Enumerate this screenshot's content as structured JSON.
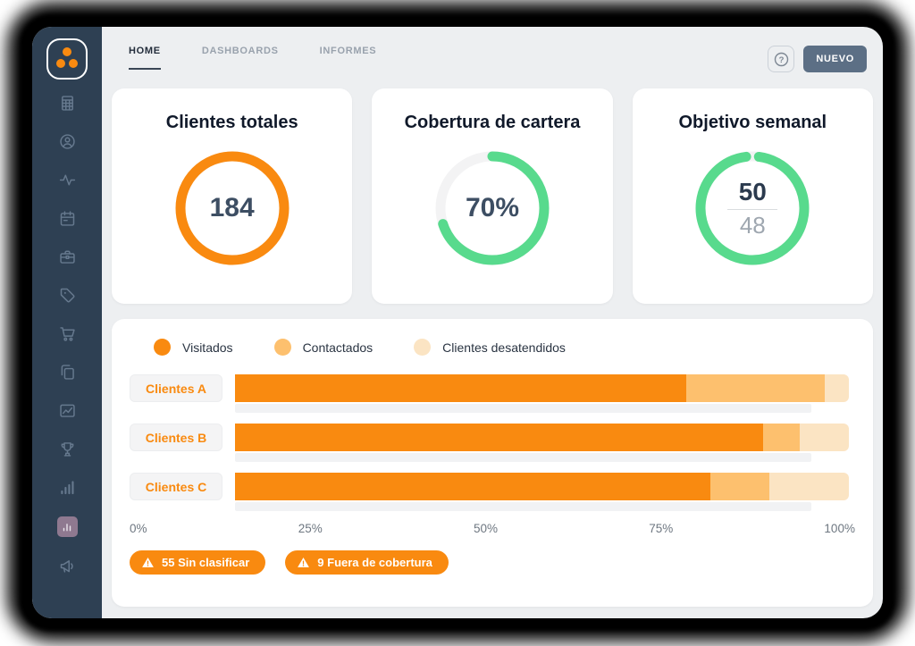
{
  "header": {
    "tabs": [
      {
        "label": "HOME",
        "active": true
      },
      {
        "label": "DASHBOARDS",
        "active": false
      },
      {
        "label": "INFORMES",
        "active": false
      }
    ],
    "help_label": "?",
    "new_button_label": "NUEVO"
  },
  "sidebar": {
    "items": [
      {
        "icon": "spreadsheet"
      },
      {
        "icon": "user"
      },
      {
        "icon": "activity"
      },
      {
        "icon": "calendar"
      },
      {
        "icon": "briefcase"
      },
      {
        "icon": "tag"
      },
      {
        "icon": "cart"
      },
      {
        "icon": "copy"
      },
      {
        "icon": "chart-frame"
      },
      {
        "icon": "trophy"
      },
      {
        "icon": "bar-chart"
      },
      {
        "icon": "bar-chart-badge",
        "highlight": true
      },
      {
        "icon": "megaphone"
      }
    ]
  },
  "kpis": [
    {
      "title": "Clientes totales",
      "value": "184",
      "percent": 100,
      "color": "#F98A10",
      "track": "#F3F3F4"
    },
    {
      "title": "Cobertura de cartera",
      "value": "70%",
      "percent": 70,
      "color": "#58DA8D",
      "track": "#F3F3F4"
    },
    {
      "title": "Objetivo semanal",
      "value_top": "50",
      "value_bottom": "48",
      "percent": 96,
      "color": "#58DA8D",
      "track": "#F3F3F4",
      "gap_centered": true
    }
  ],
  "chart_data": {
    "type": "bar",
    "orientation": "horizontal",
    "stacked": true,
    "categories": [
      "Clientes A",
      "Clientes B",
      "Clientes C"
    ],
    "series": [
      {
        "name": "Visitados",
        "color": "#F98A10",
        "values": [
          73.5,
          86,
          77.5
        ]
      },
      {
        "name": "Contactados",
        "color": "#FDC06E",
        "values": [
          22.5,
          6,
          9.5
        ]
      },
      {
        "name": "Clientes desatendidos",
        "color": "#FBE4C3",
        "values": [
          4,
          8,
          13
        ]
      }
    ],
    "x_ticks": [
      "0%",
      "25%",
      "50%",
      "75%",
      "100%"
    ],
    "xlim": [
      0,
      100
    ],
    "grid": false,
    "legend_position": "top"
  },
  "badges": [
    {
      "icon": "warning-triangle",
      "label": "55 Sin clasificar"
    },
    {
      "icon": "warning-triangle",
      "label": "9 Fuera de cobertura"
    }
  ],
  "colors": {
    "primary_orange": "#F98A10",
    "green": "#58DA8D",
    "sidebar_bg": "#2E4053",
    "new_button_bg": "#5C6F85",
    "value_text": "#3D4E63"
  }
}
